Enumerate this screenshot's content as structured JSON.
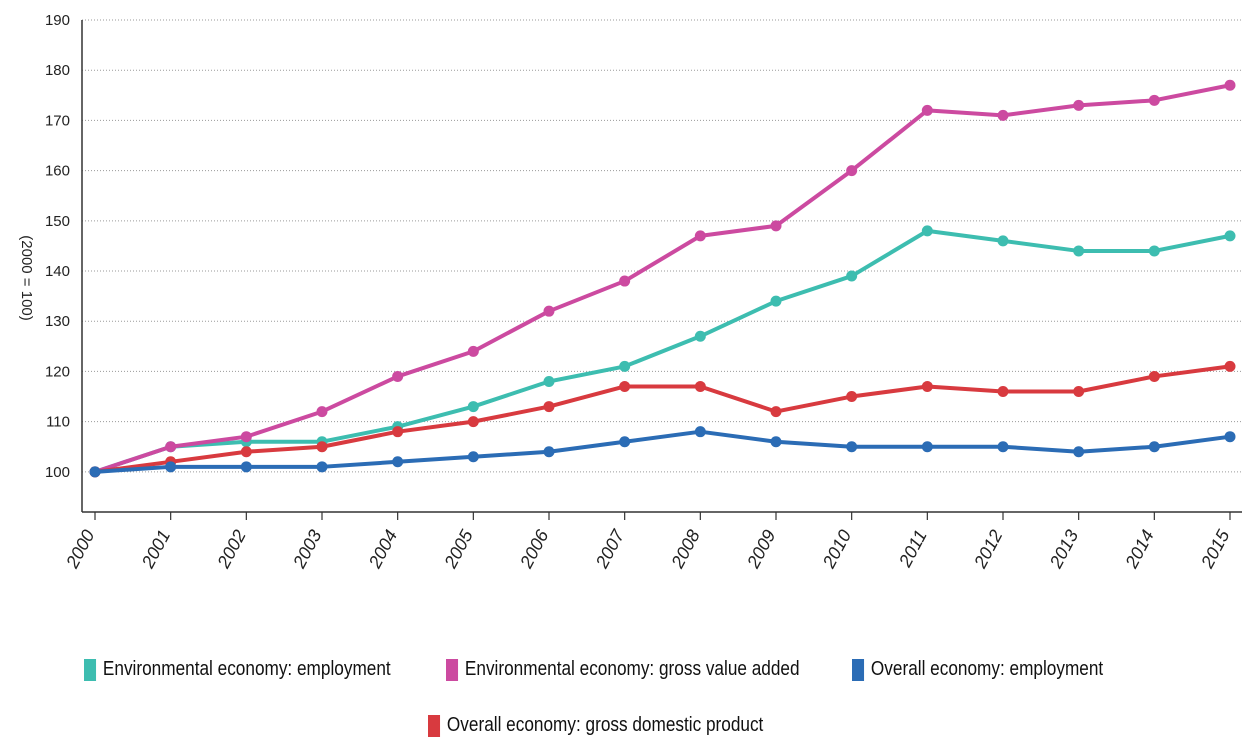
{
  "chart_data": {
    "type": "line",
    "title": "",
    "ylabel": "(2000 = 100)",
    "xlabel": "",
    "ylim": [
      92,
      190
    ],
    "yticks": [
      100,
      110,
      120,
      130,
      140,
      150,
      160,
      170,
      180,
      190
    ],
    "x": [
      "2000",
      "2001",
      "2002",
      "2003",
      "2004",
      "2005",
      "2006",
      "2007",
      "2008",
      "2009",
      "2010",
      "2011",
      "2012",
      "2013",
      "2014",
      "2015"
    ],
    "grid": true,
    "legend_position": "bottom",
    "series": [
      {
        "name": "Environmental economy: employment",
        "color": "#3dbdb0",
        "values": [
          100,
          105,
          106,
          106,
          109,
          113,
          118,
          121,
          127,
          134,
          139,
          148,
          146,
          144,
          144,
          147
        ]
      },
      {
        "name": "Environmental economy: gross value added",
        "color": "#cc4aa0",
        "values": [
          100,
          105,
          107,
          112,
          119,
          124,
          132,
          138,
          147,
          149,
          160,
          172,
          171,
          173,
          174,
          177
        ]
      },
      {
        "name": "Overall economy: employment",
        "color": "#2b6cb5",
        "values": [
          100,
          101,
          101,
          101,
          102,
          103,
          104,
          106,
          108,
          106,
          105,
          105,
          105,
          104,
          105,
          107
        ]
      },
      {
        "name": "Overall economy: gross domestic product",
        "color": "#d83a3f",
        "values": [
          100,
          102,
          104,
          105,
          108,
          110,
          113,
          117,
          117,
          112,
          115,
          117,
          116,
          116,
          119,
          121
        ]
      }
    ]
  }
}
